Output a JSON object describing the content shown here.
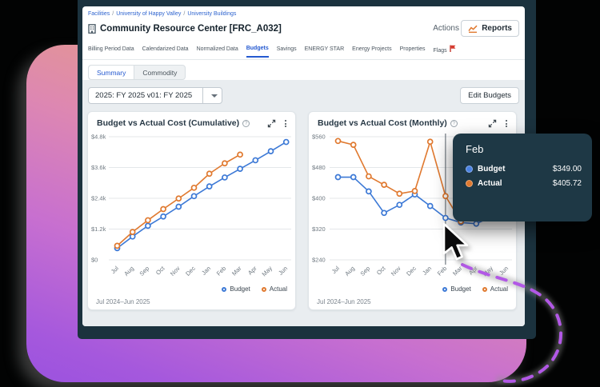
{
  "breadcrumb": {
    "items": [
      "Facilities",
      "University of Happy Valley",
      "University Buildings"
    ],
    "separator": "/"
  },
  "header": {
    "title": "Community Resource Center [FRC_A032]",
    "actions_label": "Actions",
    "reports_label": "Reports"
  },
  "tabs": [
    {
      "label": "Billing Period Data",
      "active": false
    },
    {
      "label": "Calendarized Data",
      "active": false
    },
    {
      "label": "Normalized Data",
      "active": false
    },
    {
      "label": "Budgets",
      "active": true
    },
    {
      "label": "Savings",
      "active": false
    },
    {
      "label": "ENERGY STAR",
      "active": false
    },
    {
      "label": "Energy Projects",
      "active": false
    },
    {
      "label": "Properties",
      "active": false
    },
    {
      "label": "Flags",
      "active": false
    }
  ],
  "subtabs": {
    "summary": "Summary",
    "commodity": "Commodity"
  },
  "budget_select": {
    "value": "2025: FY 2025 v01: FY 2025"
  },
  "edit_budgets_label": "Edit Budgets",
  "tooltip": {
    "title": "Feb",
    "rows": [
      {
        "label": "Budget",
        "value": "$349.00",
        "color": "#4b83e3"
      },
      {
        "label": "Actual",
        "value": "$405.72",
        "color": "#e0792f"
      }
    ]
  },
  "colors": {
    "budget_blue": "#3c79d6",
    "actual_orange": "#e0792f",
    "grid": "#e4e7ea",
    "axis_text": "#6e7880",
    "crosshair": "#555f68",
    "accent_navy": "#1b323e",
    "dashed_curve": "#b258e6"
  },
  "chart_data": [
    {
      "type": "line",
      "title": "Budget vs Actual Cost (Cumulative)",
      "x": [
        "Jul",
        "Aug",
        "Sep",
        "Oct",
        "Nov",
        "Dec",
        "Jan",
        "Feb",
        "Mar",
        "Apr",
        "May",
        "Jun"
      ],
      "ylim": [
        0,
        4800
      ],
      "y_ticks": [
        "$4.8k",
        "$3.6k",
        "$2.4k",
        "$1.2k",
        "$0"
      ],
      "grid": true,
      "legend_position": "bottom-right",
      "series": [
        {
          "name": "Budget",
          "color": "#3c79d6",
          "values": [
            455,
            910,
            1328,
            1690,
            2073,
            2483,
            2863,
            3212,
            3549,
            3883,
            4235,
            4595
          ]
        },
        {
          "name": "Actual",
          "color": "#e0792f",
          "values": [
            549,
            1088,
            1545,
            1980,
            2392,
            2811,
            3358,
            3763.72,
            4103.72
          ]
        }
      ],
      "footer": "Jul 2024–Jun 2025"
    },
    {
      "type": "line",
      "title": "Budget vs Actual Cost (Monthly)",
      "x": [
        "Jul",
        "Aug",
        "Sep",
        "Oct",
        "Nov",
        "Dec",
        "Jan",
        "Feb",
        "Mar",
        "Apr",
        "May",
        "Jun"
      ],
      "ylim": [
        240,
        560
      ],
      "y_ticks": [
        "$560",
        "$480",
        "$400",
        "$320",
        "$240"
      ],
      "grid": true,
      "legend_position": "bottom-right",
      "crosshair_index": 7,
      "series": [
        {
          "name": "Budget",
          "color": "#3c79d6",
          "values": [
            455,
            455,
            418,
            362,
            383,
            410,
            380,
            349,
            337,
            334,
            352,
            360
          ]
        },
        {
          "name": "Actual",
          "color": "#e0792f",
          "values": [
            549,
            539,
            457,
            435,
            412,
            419,
            547,
            405.72,
            340
          ]
        }
      ],
      "footer": "Jul 2024–Jun 2025"
    }
  ]
}
